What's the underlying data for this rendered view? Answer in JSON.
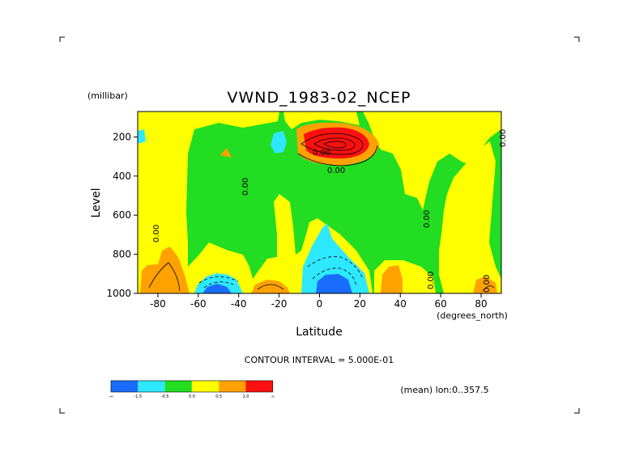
{
  "chart_data": {
    "type": "heatmap",
    "title": "VWND_1983-02_NCEP",
    "xlabel": "Latitude",
    "ylabel": "Level",
    "x_unit": "(degrees_north)",
    "y_unit": "(millibar)",
    "xlim": [
      -90,
      90
    ],
    "ylim": [
      1000,
      70
    ],
    "x_ticks": [
      "-80",
      "-60",
      "-40",
      "-20",
      "0",
      "20",
      "40",
      "60",
      "80"
    ],
    "x_tick_values": [
      -80,
      -60,
      -40,
      -20,
      0,
      20,
      40,
      60,
      80
    ],
    "y_ticks": [
      "200",
      "400",
      "600",
      "800",
      "1000"
    ],
    "y_tick_values": [
      200,
      400,
      600,
      800,
      1000
    ],
    "contour_interval_label": "CONTOUR INTERVAL = 5.000E-01",
    "contour_labels": [
      "0.00",
      "0.00",
      "0.00",
      "0.00",
      "0.00",
      "0.00",
      "0.00",
      "0.00"
    ],
    "footer_label": "(mean) lon:0..357.5",
    "colorbar": {
      "colors": [
        "#1a6cff",
        "#2ee8ff",
        "#22dd22",
        "#ffff00",
        "#ffa200",
        "#ff1010"
      ],
      "labels": [
        "-∞",
        "-1.5",
        "-0.5",
        "0.0",
        "0.5",
        "1.0",
        "∞"
      ]
    },
    "features": [
      {
        "name": "upper-tropospheric maximum",
        "lat": 8,
        "level": 180,
        "value": "> 1.0"
      },
      {
        "name": "near-surface minimum south",
        "lat": -50,
        "level": 980,
        "value": "< -1.5"
      },
      {
        "name": "near-surface minimum equator",
        "lat": 8,
        "level": 960,
        "value": "< -1.5"
      }
    ]
  }
}
